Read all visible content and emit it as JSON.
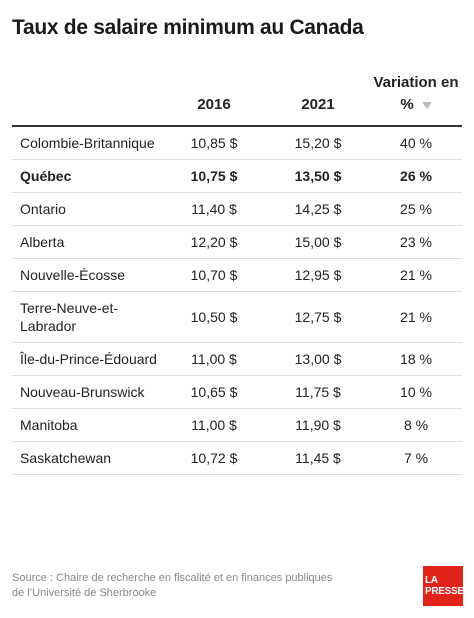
{
  "title": "Taux de salaire minimum au Canada",
  "table": {
    "header": [
      "2016",
      "2021",
      "Variation en %"
    ],
    "rows": [
      {
        "cells": [
          "Colombie-Britannique",
          "10,85 $",
          "15,20 $",
          "40 %"
        ]
      },
      {
        "cells": [
          "Québec",
          "10,75 $",
          "13,50 $",
          "26 %"
        ],
        "bold": true
      },
      {
        "cells": [
          "Ontario",
          "11,40 $",
          "14,25 $",
          "25 %"
        ]
      },
      {
        "cells": [
          "Alberta",
          "12,20 $",
          "15,00 $",
          "23 %"
        ]
      },
      {
        "cells": [
          "Nouvelle-Écosse",
          "10,70 $",
          "12,95 $",
          "21 %"
        ]
      },
      {
        "cells": [
          "Terre-Neuve-et-Labrador",
          "10,50 $",
          "12,75 $",
          "21 %"
        ]
      },
      {
        "cells": [
          "Île-du-Prince-Édouard",
          "11,00 $",
          "13,00 $",
          "18 %"
        ]
      },
      {
        "cells": [
          "Nouveau-Brunswick",
          "10,65 $",
          "11,75 $",
          "10 %"
        ]
      },
      {
        "cells": [
          "Manitoba",
          "11,00 $",
          "11,90 $",
          "8 %"
        ]
      },
      {
        "cells": [
          "Saskatchewan",
          "10,72 $",
          "11,45 $",
          "7 %"
        ]
      }
    ]
  },
  "source": "Source : Chaire de recherche en fiscalité et en finances publiques de l’Université de Sherbrooke",
  "logo": [
    "LA",
    "PRESSE"
  ]
}
